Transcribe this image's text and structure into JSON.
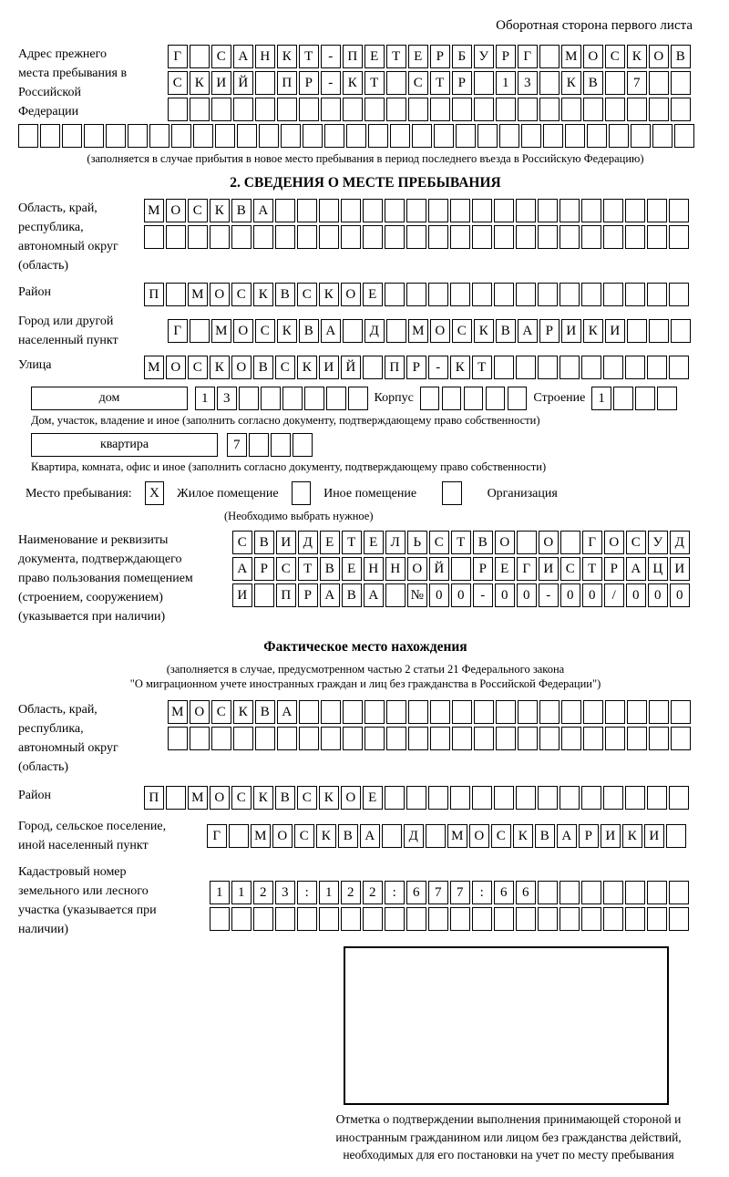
{
  "header": {
    "title": "Оборотная сторона первого листа"
  },
  "prev_address": {
    "label": "Адрес прежнего места пребывания в Российской Федерации",
    "rows": [
      "Г САНКТ-ПЕТЕРБУРГ МОСКОВ",
      "СКИЙ ПР-КТ СТР 13 КВ 7  ",
      "                        "
    ],
    "overflow_row": "                               ",
    "note": "(заполняется в случае прибытия в новое место пребывания в период последнего въезда в Российскую Федерацию)"
  },
  "section2": {
    "title": "2. СВЕДЕНИЯ О МЕСТЕ ПРЕБЫВАНИЯ",
    "region": {
      "label": "Область, край, республика, автономный округ (область)",
      "rows": [
        "МОСКВА                   ",
        "                         "
      ]
    },
    "district": {
      "label": "Район",
      "row": "П МОСКВСКОЕ              "
    },
    "city": {
      "label": "Город или другой населенный пункт",
      "row": "Г МОСКВА Д МОСКВАРИКИ   "
    },
    "street": {
      "label": "Улица",
      "row": "МОСКОВСКИЙ ПР-КТ         "
    },
    "house": {
      "box_label": "дом",
      "cells": "13      ",
      "korpus_label": "Корпус",
      "korpus_cells": "     ",
      "stroenie_label": "Строение",
      "stroenie_cells": "1   "
    },
    "house_note": "Дом, участок, владение и иное (заполнить согласно документу, подтверждающему право собственности)",
    "apartment": {
      "box_label": "квартира",
      "cells": "7   "
    },
    "apartment_note": "Квартира, комната, офис и иное (заполнить согласно документу, подтверждающему право собственности)",
    "stay_type": {
      "label": "Место пребывания:",
      "options": [
        {
          "label": "Жилое помещение",
          "mark": "X"
        },
        {
          "label": "Иное помещение",
          "mark": ""
        },
        {
          "label": "Организация",
          "mark": ""
        }
      ],
      "note": "(Необходимо выбрать нужное)"
    },
    "document": {
      "label": "Наименование и реквизиты документа, подтверждающего право пользования помещением (строением, сооружением) (указывается при наличии)",
      "rows": [
        "СВИДЕТЕЛЬСТВО О ГОСУД",
        "АРСТВЕННОЙ РЕГИСТРАЦИ",
        "И ПРАВА №00-00-00/000"
      ]
    }
  },
  "actual_location": {
    "title": "Фактическое место нахождения",
    "note_line1": "(заполняется в случае, предусмотренном частью 2 статьи 21 Федерального закона",
    "note_line2": "\"О миграционном учете иностранных граждан и лиц без гражданства в Российской Федерации\")",
    "region": {
      "label": "Область, край, республика, автономный округ (область)",
      "rows": [
        "МОСКВА                  ",
        "                        "
      ]
    },
    "district": {
      "label": "Район",
      "row": "П МОСКВСКОЕ              "
    },
    "city": {
      "label": "Город, сельское поселение, иной населенный пункт",
      "row": "Г МОСКВА Д МОСКВАРИКИ "
    },
    "cadastral": {
      "label": "Кадастровый номер земельного или лесного участка (указывается при наличии)",
      "rows": [
        "1123:122:677:66       ",
        "                      "
      ]
    }
  },
  "confirmation": {
    "caption": "Отметка о подтверждении выполнения принимающей стороной и иностранным гражданином или лицом без гражданства действий, необходимых для его постановки на учет по месту пребывания"
  }
}
